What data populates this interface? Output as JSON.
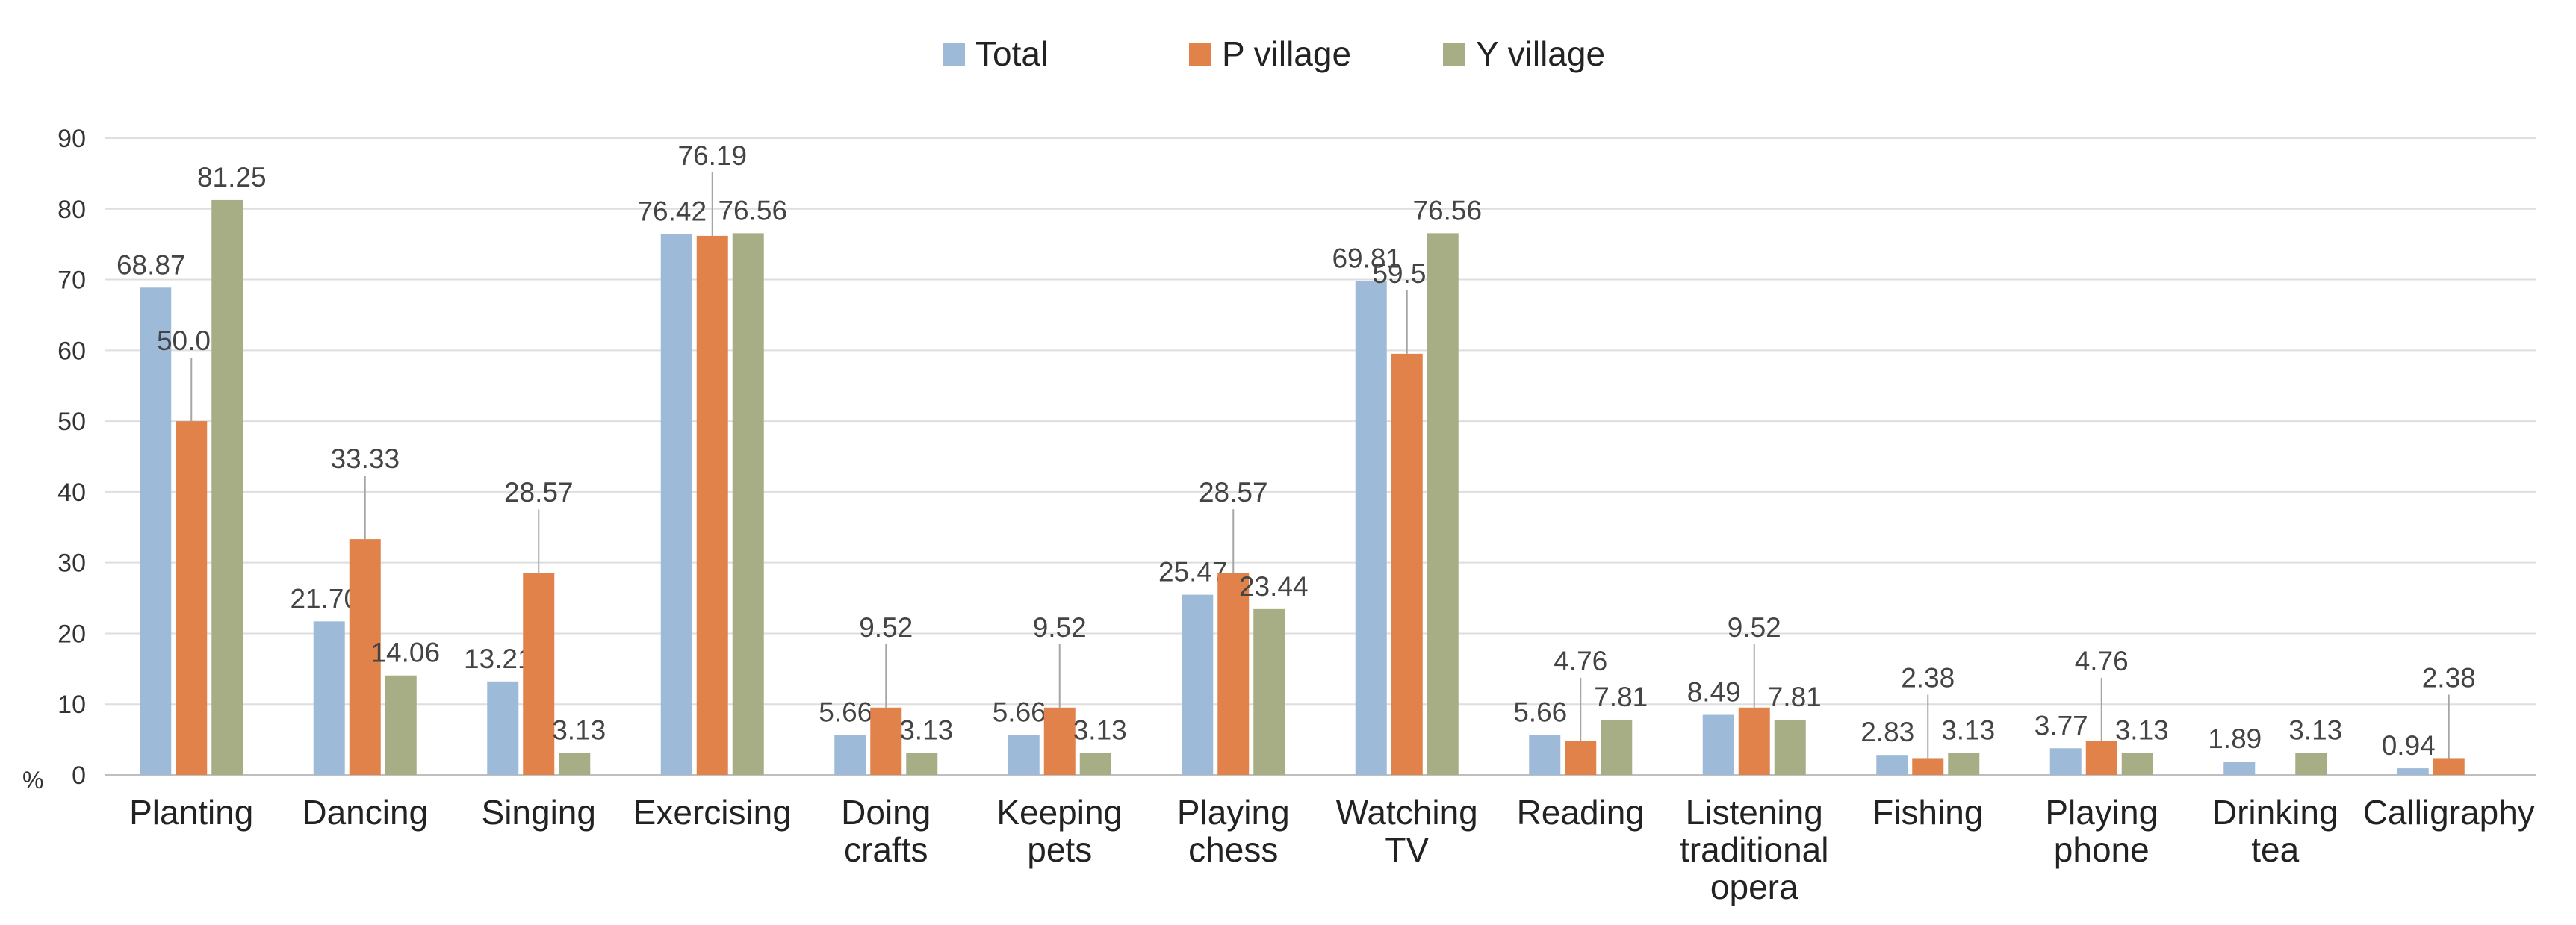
{
  "chart_data": {
    "type": "bar",
    "title": "",
    "xlabel": "",
    "ylabel": "%",
    "ylim": [
      0,
      90
    ],
    "yticks": [
      "0",
      "10",
      "20",
      "30",
      "40",
      "50",
      "60",
      "70",
      "80",
      "90"
    ],
    "grid": true,
    "legend_position": "top-center",
    "categories": [
      [
        "Planting"
      ],
      [
        "Dancing"
      ],
      [
        "Singing"
      ],
      [
        "Exercising"
      ],
      [
        "Doing",
        "crafts"
      ],
      [
        "Keeping",
        "pets"
      ],
      [
        "Playing",
        "chess"
      ],
      [
        "Watching",
        "TV"
      ],
      [
        "Reading"
      ],
      [
        "Listening",
        "traditional",
        "opera"
      ],
      [
        "Fishing"
      ],
      [
        "Playing",
        "phone"
      ],
      [
        "Drinking",
        "tea"
      ],
      [
        "Calligraphy"
      ]
    ],
    "series": [
      {
        "name": "Total",
        "color": "#9dbbd8",
        "values": [
          68.87,
          21.7,
          13.21,
          76.42,
          5.66,
          5.66,
          25.47,
          69.81,
          5.66,
          8.49,
          2.83,
          3.77,
          1.89,
          0.94
        ],
        "labels": [
          "68.87",
          "21.70",
          "13.21",
          "76.42",
          "5.66",
          "5.66",
          "25.47",
          "69.81",
          "5.66",
          "8.49",
          "2.83",
          "3.77",
          "1.89",
          "0.94"
        ]
      },
      {
        "name": "P village",
        "color": "#e1824a",
        "values": [
          50.0,
          33.33,
          28.57,
          76.19,
          9.52,
          9.52,
          28.57,
          59.52,
          4.76,
          9.52,
          2.38,
          4.76,
          0,
          2.38
        ],
        "labels": [
          "50.00",
          "33.33",
          "28.57",
          "76.19",
          "9.52",
          "9.52",
          "28.57",
          "59.52",
          "4.76",
          "9.52",
          "2.38",
          "4.76",
          "",
          "2.38"
        ]
      },
      {
        "name": "Y village",
        "color": "#a7ad84",
        "values": [
          81.25,
          14.06,
          3.13,
          76.56,
          3.13,
          3.13,
          23.44,
          76.56,
          7.81,
          7.81,
          3.13,
          3.13,
          3.13,
          0
        ],
        "labels": [
          "81.25",
          "14.06",
          "3.13",
          "76.56",
          "3.13",
          "3.13",
          "23.44",
          "76.56",
          "7.81",
          "7.81",
          "3.13",
          "3.13",
          "3.13",
          ""
        ]
      }
    ]
  }
}
